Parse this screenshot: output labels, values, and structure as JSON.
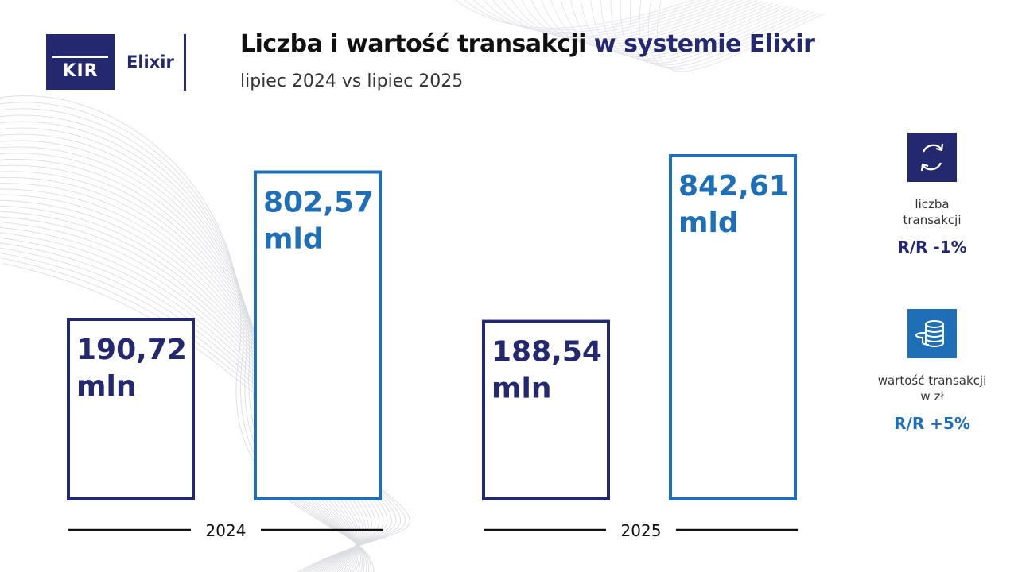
{
  "logo": {
    "kir": "KIR",
    "elixir": "Elixir"
  },
  "title": {
    "main": "Liczba i wartość transakcji",
    "accent": "w systemie Elixir"
  },
  "subtitle": "lipiec 2024 vs lipiec 2025",
  "colors": {
    "navy": "#23286f",
    "blue": "#1f6fb8",
    "axis": "#111111"
  },
  "chart_data": {
    "type": "bar",
    "categories": [
      "2024",
      "2025"
    ],
    "series": [
      {
        "unit": "mln",
        "values": [
          190.72,
          188.54
        ],
        "labels": [
          "190,72",
          "188,54"
        ],
        "color": "#23286f"
      },
      {
        "unit": "mld",
        "values": [
          802.57,
          842.61
        ],
        "labels": [
          "802,57",
          "842,61"
        ],
        "color": "#1f6fb8"
      }
    ],
    "title": "Liczba i wartość transakcji w systemie Elixir",
    "subtitle": "lipiec 2024 vs lipiec 2025",
    "legend_placement": "right"
  },
  "stats": [
    {
      "icon": "exchange-arrows-icon",
      "label_lines": [
        "liczba",
        "transakcji"
      ],
      "value": "R/R -1%",
      "color": "#23286f"
    },
    {
      "icon": "coin-stack-icon",
      "label_lines": [
        "wartość transakcji",
        "w zł"
      ],
      "value": "R/R +5%",
      "color": "#1f6fb8"
    }
  ]
}
